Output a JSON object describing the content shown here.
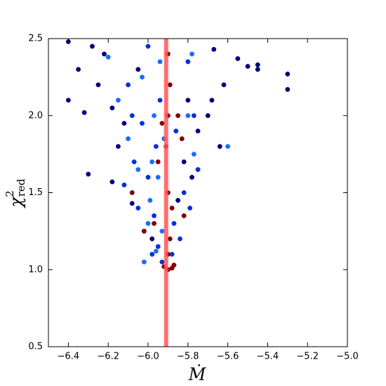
{
  "chart_data": {
    "type": "scatter",
    "xlabel": "Ṁ",
    "ylabel": {
      "symbol": "χ",
      "superscript": "2",
      "subscript": "red"
    },
    "xlim": [
      -6.5,
      -5.0
    ],
    "ylim": [
      0.5,
      2.5
    ],
    "xticks": [
      {
        "value": -6.4,
        "label": "−6.4"
      },
      {
        "value": -6.2,
        "label": "−6.2"
      },
      {
        "value": -6.0,
        "label": "−6.0"
      },
      {
        "value": -5.8,
        "label": "−5.8"
      },
      {
        "value": -5.6,
        "label": "−5.6"
      },
      {
        "value": -5.4,
        "label": "−5.4"
      },
      {
        "value": -5.2,
        "label": "−5.2"
      },
      {
        "value": -5.0,
        "label": "−5.0"
      }
    ],
    "yticks": [
      0.5,
      {
        "value": 1.0,
        "label": "1.0"
      },
      1.5,
      {
        "value": 2.0,
        "label": "2.0"
      },
      2.5
    ],
    "vspan": {
      "x": [
        -5.92,
        -5.9
      ],
      "color": "#ff5555"
    },
    "series": [
      {
        "color": "#00007a",
        "x": [
          -6.4,
          -6.4,
          -6.35,
          -6.32,
          -6.3,
          -6.28,
          -6.25,
          -6.22,
          -6.18,
          -6.18,
          -6.15,
          -6.12,
          -6.08,
          -6.05,
          -5.98,
          -5.85,
          -5.82,
          -5.8,
          -5.78,
          -5.7,
          -5.67,
          -5.64,
          -5.62,
          -5.55,
          -5.5,
          -5.45,
          -5.45,
          -5.3,
          -5.3,
          -5.68,
          -5.75
        ],
        "y": [
          2.48,
          2.1,
          2.3,
          2.02,
          1.62,
          2.45,
          2.2,
          2.4,
          1.57,
          2.05,
          1.8,
          1.95,
          1.43,
          2.3,
          1.2,
          1.45,
          1.7,
          2.1,
          1.6,
          2.0,
          2.43,
          1.8,
          2.2,
          2.37,
          2.32,
          2.3,
          2.33,
          2.27,
          2.17,
          2.1,
          1.9
        ]
      },
      {
        "color": "#0030e0",
        "x": [
          -6.1,
          -6.07,
          -6.05,
          -6.03,
          -6.02,
          -6.0,
          -6.0,
          -5.98,
          -5.96,
          -5.95,
          -5.94,
          -5.93,
          -5.88,
          -5.87,
          -5.86,
          -5.84,
          -5.82,
          -5.8,
          -5.79,
          -5.77,
          -5.75,
          -6.12,
          -6.08,
          -5.97
        ],
        "y": [
          2.2,
          1.7,
          1.4,
          1.95,
          1.25,
          2.45,
          1.6,
          1.1,
          1.8,
          1.15,
          2.1,
          1.05,
          1.1,
          1.3,
          1.9,
          1.2,
          1.5,
          2.35,
          1.4,
          2.0,
          1.65,
          1.55,
          2.0,
          1.35
        ]
      },
      {
        "color": "#1a6cff",
        "x": [
          -6.2,
          -6.15,
          -6.1,
          -6.05,
          -6.03,
          -6.0,
          -5.99,
          -5.97,
          -5.96,
          -5.95,
          -5.94,
          -5.93,
          -5.92,
          -5.8,
          -5.78,
          -5.77,
          -5.6,
          -5.98,
          -6.02
        ],
        "y": [
          2.38,
          2.1,
          1.85,
          1.65,
          2.25,
          1.3,
          1.45,
          2.0,
          1.12,
          1.6,
          2.35,
          1.25,
          1.85,
          2.0,
          2.4,
          1.75,
          1.8,
          1.7,
          1.05
        ]
      },
      {
        "color": "#800000",
        "x": [
          -6.08,
          -6.02,
          -5.97,
          -5.95,
          -5.93,
          -5.92,
          -5.9,
          -5.89,
          -5.88,
          -5.87,
          -5.9,
          -5.9,
          -5.9,
          -5.91,
          -5.89,
          -5.85,
          -5.82,
          -5.83,
          -5.88,
          -5.9
        ],
        "y": [
          1.5,
          1.25,
          1.3,
          1.7,
          1.95,
          1.02,
          1.0,
          1.2,
          1.01,
          1.03,
          1.5,
          2.0,
          2.4,
          1.8,
          2.2,
          2.0,
          1.35,
          1.85,
          1.4,
          1.1
        ]
      }
    ]
  }
}
